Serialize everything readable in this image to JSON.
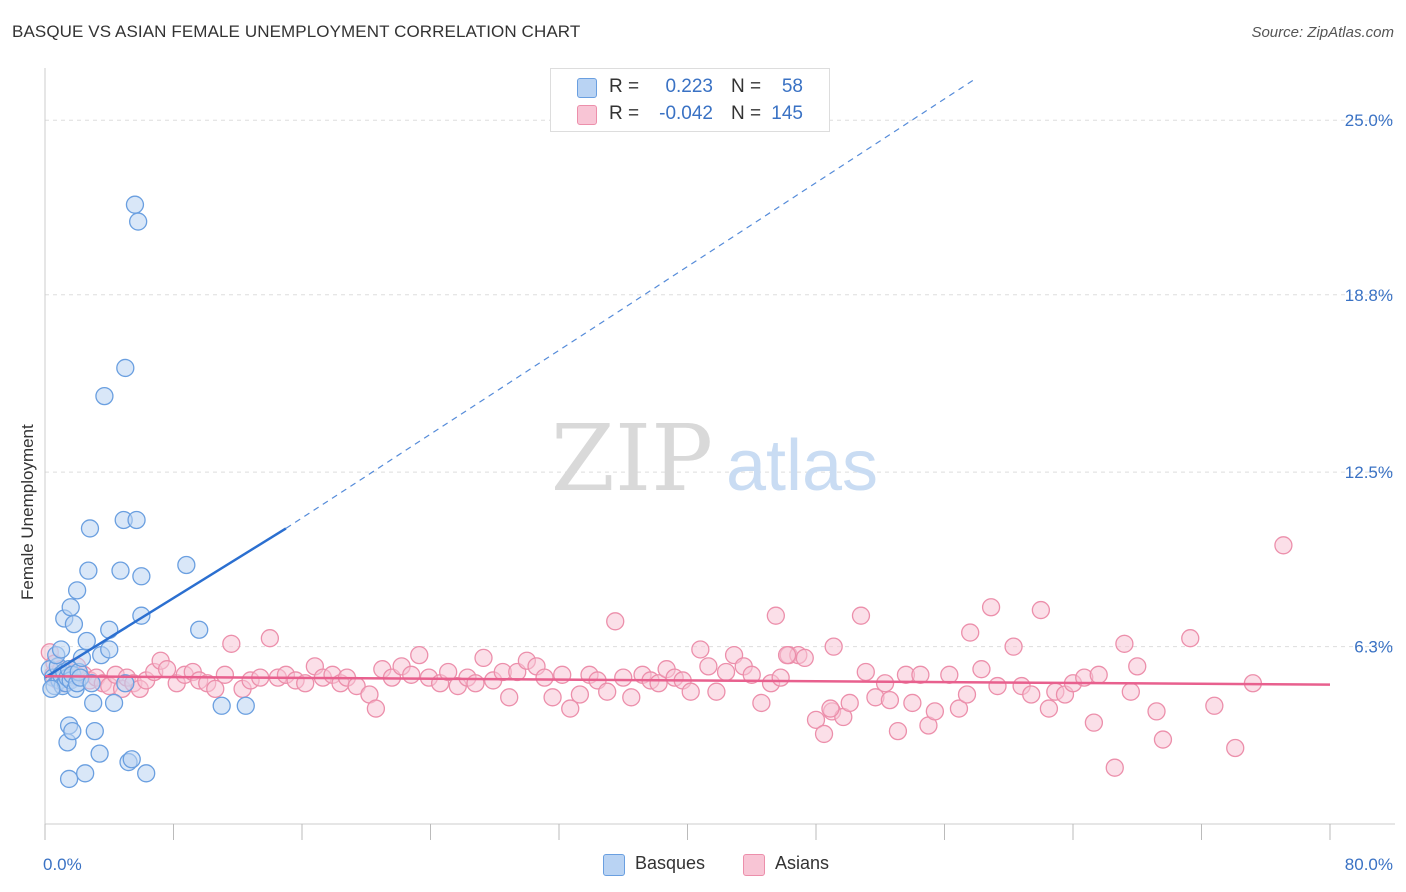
{
  "header": {
    "title": "BASQUE VS ASIAN FEMALE UNEMPLOYMENT CORRELATION CHART",
    "source": "Source: ZipAtlas.com"
  },
  "legend": {
    "basques": {
      "r_label": "R =",
      "r_value": "0.223",
      "n_label": "N =",
      "n_value": "58"
    },
    "asians": {
      "r_label": "R =",
      "r_value": "-0.042",
      "n_label": "N =",
      "n_value": "145"
    }
  },
  "bottom_legend": {
    "basques": "Basques",
    "asians": "Asians"
  },
  "watermark": {
    "zip": "ZIP",
    "atlas": "atlas"
  },
  "colors": {
    "basque_fill": "#b9d3f3",
    "basque_stroke": "#6a9fe0",
    "basque_line": "#2b6fd0",
    "asian_fill": "#f8c5d5",
    "asian_stroke": "#ec8fab",
    "asian_line": "#e8608e",
    "axis_text": "#3a72c4",
    "grid": "#dddddd"
  },
  "chart_data": {
    "type": "scatter",
    "title": "BASQUE VS ASIAN FEMALE UNEMPLOYMENT CORRELATION CHART",
    "xlabel": "",
    "ylabel": "Female Unemployment",
    "xlim": [
      0,
      80
    ],
    "ylim": [
      0,
      26.5
    ],
    "x_tick_labels": [
      "0.0%",
      "80.0%"
    ],
    "y_ticks": [
      6.3,
      12.5,
      18.8,
      25.0
    ],
    "y_tick_labels": [
      "6.3%",
      "12.5%",
      "18.8%",
      "25.0%"
    ],
    "series": [
      {
        "name": "Basques",
        "points": [
          [
            0.3,
            5.5
          ],
          [
            0.5,
            5.2
          ],
          [
            0.6,
            4.9
          ],
          [
            0.8,
            5.6
          ],
          [
            0.9,
            5.1
          ],
          [
            1.0,
            5.3
          ],
          [
            1.1,
            4.9
          ],
          [
            1.2,
            5.4
          ],
          [
            1.3,
            5.0
          ],
          [
            1.4,
            5.2
          ],
          [
            1.5,
            5.5
          ],
          [
            1.6,
            5.1
          ],
          [
            1.7,
            5.3
          ],
          [
            1.9,
            4.8
          ],
          [
            2.0,
            5.0
          ],
          [
            2.1,
            5.4
          ],
          [
            2.2,
            5.2
          ],
          [
            0.4,
            4.8
          ],
          [
            0.7,
            6.0
          ],
          [
            1.0,
            6.2
          ],
          [
            1.2,
            7.3
          ],
          [
            1.6,
            7.7
          ],
          [
            1.8,
            7.1
          ],
          [
            2.0,
            8.3
          ],
          [
            2.3,
            5.9
          ],
          [
            2.6,
            6.5
          ],
          [
            2.7,
            9.0
          ],
          [
            2.8,
            10.5
          ],
          [
            2.9,
            5.0
          ],
          [
            3.0,
            4.3
          ],
          [
            3.1,
            3.3
          ],
          [
            3.4,
            2.5
          ],
          [
            3.5,
            6.0
          ],
          [
            4.0,
            6.9
          ],
          [
            4.0,
            6.2
          ],
          [
            4.3,
            4.3
          ],
          [
            4.7,
            9.0
          ],
          [
            4.9,
            10.8
          ],
          [
            5.0,
            5.0
          ],
          [
            5.2,
            2.2
          ],
          [
            5.4,
            2.3
          ],
          [
            5.6,
            22.0
          ],
          [
            5.8,
            21.4
          ],
          [
            5.0,
            16.2
          ],
          [
            3.7,
            15.2
          ],
          [
            5.7,
            10.8
          ],
          [
            6.0,
            8.8
          ],
          [
            6.0,
            7.4
          ],
          [
            6.3,
            1.8
          ],
          [
            8.8,
            9.2
          ],
          [
            9.6,
            6.9
          ],
          [
            11.0,
            4.2
          ],
          [
            12.5,
            4.2
          ],
          [
            1.4,
            2.9
          ],
          [
            1.5,
            3.5
          ],
          [
            1.7,
            3.3
          ],
          [
            1.5,
            1.6
          ],
          [
            2.5,
            1.8
          ]
        ],
        "trend": {
          "x": [
            0,
            15
          ],
          "y": [
            5.2,
            10.5
          ],
          "extrapolated_to": [
            58,
            26.5
          ]
        }
      },
      {
        "name": "Asians",
        "points": [
          [
            0.3,
            6.1
          ],
          [
            0.5,
            5.3
          ],
          [
            0.6,
            5.7
          ],
          [
            0.8,
            5.1
          ],
          [
            1.0,
            5.5
          ],
          [
            1.2,
            5.0
          ],
          [
            1.5,
            5.4
          ],
          [
            1.8,
            5.2
          ],
          [
            2.0,
            5.6
          ],
          [
            2.4,
            5.3
          ],
          [
            2.8,
            5.1
          ],
          [
            3.2,
            5.2
          ],
          [
            3.6,
            5.0
          ],
          [
            4.0,
            4.9
          ],
          [
            4.4,
            5.3
          ],
          [
            4.8,
            4.8
          ],
          [
            5.1,
            5.2
          ],
          [
            5.5,
            5.0
          ],
          [
            5.9,
            4.8
          ],
          [
            6.3,
            5.1
          ],
          [
            6.8,
            5.4
          ],
          [
            7.2,
            5.8
          ],
          [
            7.6,
            5.5
          ],
          [
            8.2,
            5.0
          ],
          [
            8.7,
            5.3
          ],
          [
            9.2,
            5.4
          ],
          [
            9.6,
            5.1
          ],
          [
            10.1,
            5.0
          ],
          [
            10.6,
            4.8
          ],
          [
            11.2,
            5.3
          ],
          [
            11.6,
            6.4
          ],
          [
            12.3,
            4.8
          ],
          [
            12.8,
            5.1
          ],
          [
            13.4,
            5.2
          ],
          [
            14.0,
            6.6
          ],
          [
            14.5,
            5.2
          ],
          [
            15.0,
            5.3
          ],
          [
            15.6,
            5.1
          ],
          [
            16.2,
            5.0
          ],
          [
            16.8,
            5.6
          ],
          [
            17.3,
            5.2
          ],
          [
            17.9,
            5.3
          ],
          [
            18.4,
            5.0
          ],
          [
            18.8,
            5.2
          ],
          [
            19.4,
            4.9
          ],
          [
            20.2,
            4.6
          ],
          [
            20.6,
            4.1
          ],
          [
            21.0,
            5.5
          ],
          [
            21.6,
            5.2
          ],
          [
            22.2,
            5.6
          ],
          [
            22.8,
            5.3
          ],
          [
            23.3,
            6.0
          ],
          [
            23.9,
            5.2
          ],
          [
            24.6,
            5.0
          ],
          [
            25.1,
            5.4
          ],
          [
            25.7,
            4.9
          ],
          [
            26.3,
            5.2
          ],
          [
            26.8,
            5.0
          ],
          [
            27.3,
            5.9
          ],
          [
            27.9,
            5.1
          ],
          [
            28.5,
            5.4
          ],
          [
            28.9,
            4.5
          ],
          [
            29.4,
            5.4
          ],
          [
            30.0,
            5.8
          ],
          [
            30.6,
            5.6
          ],
          [
            31.1,
            5.2
          ],
          [
            31.6,
            4.5
          ],
          [
            32.2,
            5.3
          ],
          [
            32.7,
            4.1
          ],
          [
            33.3,
            4.6
          ],
          [
            33.9,
            5.3
          ],
          [
            34.4,
            5.1
          ],
          [
            35.0,
            4.7
          ],
          [
            35.5,
            7.2
          ],
          [
            36.0,
            5.2
          ],
          [
            36.5,
            4.5
          ],
          [
            37.2,
            5.3
          ],
          [
            37.7,
            5.1
          ],
          [
            38.2,
            5.0
          ],
          [
            38.7,
            5.5
          ],
          [
            39.2,
            5.2
          ],
          [
            39.7,
            5.1
          ],
          [
            40.2,
            4.7
          ],
          [
            40.8,
            6.2
          ],
          [
            41.3,
            5.6
          ],
          [
            41.8,
            4.7
          ],
          [
            42.4,
            5.4
          ],
          [
            42.9,
            6.0
          ],
          [
            43.5,
            5.6
          ],
          [
            44.0,
            5.3
          ],
          [
            44.6,
            4.3
          ],
          [
            45.2,
            5.0
          ],
          [
            45.8,
            5.2
          ],
          [
            46.3,
            6.0
          ],
          [
            46.9,
            6.0
          ],
          [
            47.3,
            5.9
          ],
          [
            48.0,
            3.7
          ],
          [
            48.5,
            3.2
          ],
          [
            49.0,
            4.0
          ],
          [
            49.1,
            6.3
          ],
          [
            49.7,
            3.8
          ],
          [
            50.1,
            4.3
          ],
          [
            50.8,
            7.4
          ],
          [
            51.1,
            5.4
          ],
          [
            51.7,
            4.5
          ],
          [
            52.3,
            5.0
          ],
          [
            52.6,
            4.4
          ],
          [
            53.1,
            3.3
          ],
          [
            53.6,
            5.3
          ],
          [
            54.0,
            4.3
          ],
          [
            54.5,
            5.3
          ],
          [
            55.0,
            3.5
          ],
          [
            55.4,
            4.0
          ],
          [
            56.3,
            5.3
          ],
          [
            56.9,
            4.1
          ],
          [
            57.4,
            4.6
          ],
          [
            57.6,
            6.8
          ],
          [
            58.3,
            5.5
          ],
          [
            58.9,
            7.7
          ],
          [
            59.3,
            4.9
          ],
          [
            60.3,
            6.3
          ],
          [
            60.8,
            4.9
          ],
          [
            61.4,
            4.6
          ],
          [
            62.0,
            7.6
          ],
          [
            62.5,
            4.1
          ],
          [
            62.9,
            4.7
          ],
          [
            63.5,
            4.6
          ],
          [
            64.0,
            5.0
          ],
          [
            64.7,
            5.2
          ],
          [
            65.3,
            3.6
          ],
          [
            65.6,
            5.3
          ],
          [
            66.6,
            2.0
          ],
          [
            67.2,
            6.4
          ],
          [
            67.6,
            4.7
          ],
          [
            68.0,
            5.6
          ],
          [
            69.2,
            4.0
          ],
          [
            69.6,
            3.0
          ],
          [
            71.3,
            6.6
          ],
          [
            72.8,
            4.2
          ],
          [
            74.1,
            2.7
          ],
          [
            75.2,
            5.0
          ],
          [
            77.1,
            9.9
          ],
          [
            46.2,
            6.0
          ],
          [
            48.9,
            4.1
          ],
          [
            45.5,
            7.4
          ]
        ],
        "trend": {
          "x": [
            0,
            80
          ],
          "y": [
            5.25,
            4.95
          ]
        }
      }
    ]
  }
}
